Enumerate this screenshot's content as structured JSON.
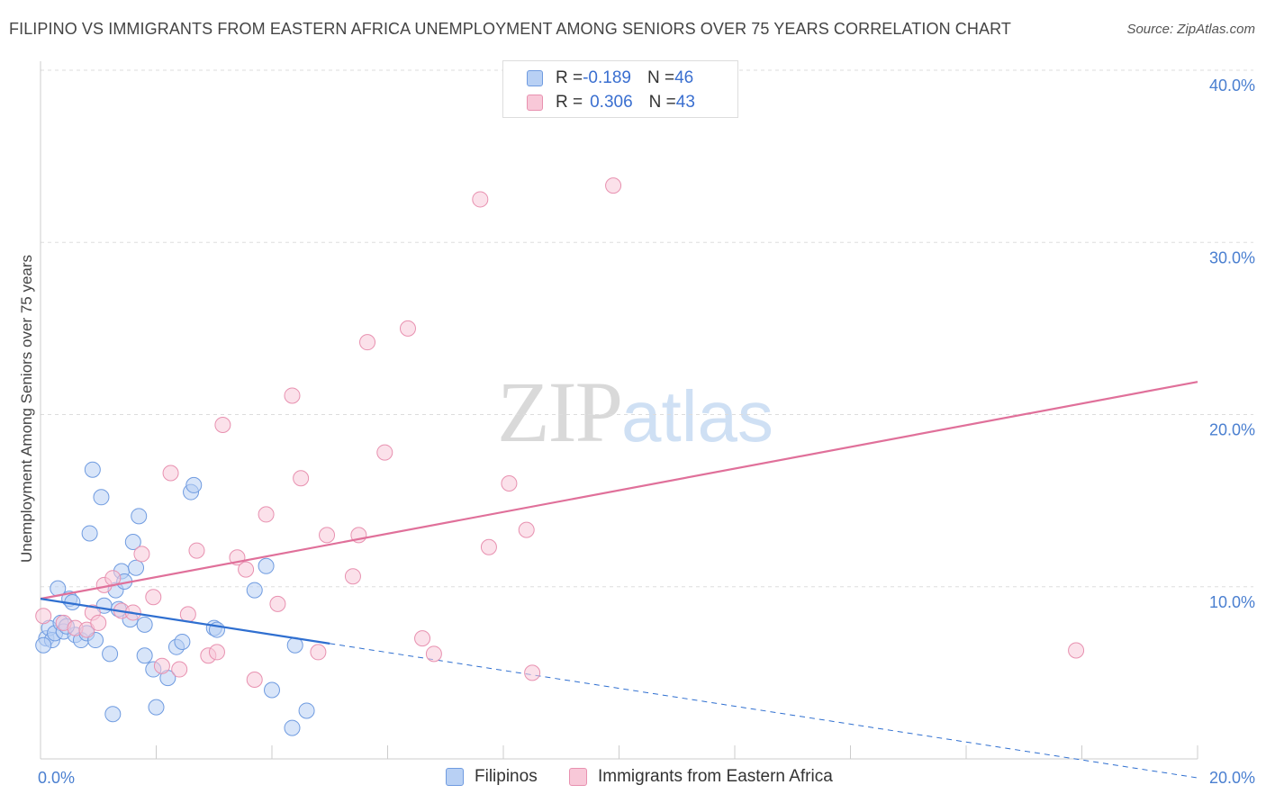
{
  "header": {
    "title": "FILIPINO VS IMMIGRANTS FROM EASTERN AFRICA UNEMPLOYMENT AMONG SENIORS OVER 75 YEARS CORRELATION CHART",
    "source": "Source: ZipAtlas.com"
  },
  "watermark": {
    "zip": "ZIP",
    "atlas": "atlas"
  },
  "legend": {
    "rows": [
      {
        "r_label": "R = ",
        "r_value": "-0.189",
        "n_label": "N = ",
        "n_value": "46"
      },
      {
        "r_label": "R = ",
        "r_value": "0.306",
        "n_label": "N = ",
        "n_value": "43"
      }
    ]
  },
  "bottom_legend": {
    "items": [
      {
        "label": "Filipinos"
      },
      {
        "label": "Immigrants from Eastern Africa"
      }
    ]
  },
  "colors": {
    "blue_fill": "#b8d0f4",
    "blue_stroke": "#6f9be0",
    "blue_line": "#2f6fd0",
    "pink_fill": "#f8c8d8",
    "pink_stroke": "#e891b0",
    "pink_line": "#e0709a",
    "tick": "#4a7fd0",
    "grid": "#dddddd"
  },
  "chart_data": {
    "type": "scatter",
    "title": "FILIPINO VS IMMIGRANTS FROM EASTERN AFRICA UNEMPLOYMENT AMONG SENIORS OVER 75 YEARS CORRELATION CHART",
    "xlabel": "",
    "ylabel": "Unemployment Among Seniors over 75 years",
    "xlim": [
      0,
      20
    ],
    "ylim": [
      0,
      40
    ],
    "x_ticks": [
      {
        "value": 0,
        "label": "0.0%"
      },
      {
        "value": 20,
        "label": "20.0%"
      }
    ],
    "y_ticks": [
      {
        "value": 10,
        "label": "10.0%"
      },
      {
        "value": 20,
        "label": "20.0%"
      },
      {
        "value": 30,
        "label": "30.0%"
      },
      {
        "value": 40,
        "label": "40.0%"
      }
    ],
    "series": [
      {
        "name": "Filipinos",
        "color": "#6f9be0",
        "points": [
          [
            0.1,
            7.0
          ],
          [
            0.15,
            7.6
          ],
          [
            0.2,
            6.9
          ],
          [
            0.25,
            7.3
          ],
          [
            0.3,
            9.9
          ],
          [
            0.35,
            7.9
          ],
          [
            0.4,
            7.4
          ],
          [
            0.5,
            9.3
          ],
          [
            0.55,
            9.1
          ],
          [
            0.6,
            7.2
          ],
          [
            0.7,
            6.9
          ],
          [
            0.8,
            7.3
          ],
          [
            0.85,
            13.1
          ],
          [
            0.9,
            16.8
          ],
          [
            0.95,
            6.9
          ],
          [
            1.05,
            15.2
          ],
          [
            1.1,
            8.9
          ],
          [
            1.2,
            6.1
          ],
          [
            1.25,
            2.6
          ],
          [
            1.3,
            9.8
          ],
          [
            1.35,
            8.7
          ],
          [
            1.4,
            10.9
          ],
          [
            1.45,
            10.3
          ],
          [
            1.55,
            8.1
          ],
          [
            1.6,
            12.6
          ],
          [
            1.65,
            11.1
          ],
          [
            1.7,
            14.1
          ],
          [
            1.8,
            7.8
          ],
          [
            1.8,
            6.0
          ],
          [
            1.95,
            5.2
          ],
          [
            2.0,
            3.0
          ],
          [
            2.2,
            4.7
          ],
          [
            2.35,
            6.5
          ],
          [
            2.45,
            6.8
          ],
          [
            2.6,
            15.5
          ],
          [
            2.65,
            15.9
          ],
          [
            3.0,
            7.6
          ],
          [
            3.05,
            7.5
          ],
          [
            3.7,
            9.8
          ],
          [
            3.9,
            11.2
          ],
          [
            4.0,
            4.0
          ],
          [
            4.35,
            1.8
          ],
          [
            4.4,
            6.6
          ],
          [
            4.6,
            2.8
          ],
          [
            0.05,
            6.6
          ],
          [
            0.45,
            7.7
          ]
        ]
      },
      {
        "name": "Immigrants from Eastern Africa",
        "color": "#e891b0",
        "points": [
          [
            0.05,
            8.3
          ],
          [
            0.4,
            7.9
          ],
          [
            0.6,
            7.6
          ],
          [
            0.8,
            7.5
          ],
          [
            0.9,
            8.5
          ],
          [
            1.0,
            7.9
          ],
          [
            1.1,
            10.1
          ],
          [
            1.25,
            10.5
          ],
          [
            1.4,
            8.6
          ],
          [
            1.6,
            8.5
          ],
          [
            1.75,
            11.9
          ],
          [
            1.95,
            9.4
          ],
          [
            2.1,
            5.4
          ],
          [
            2.25,
            16.6
          ],
          [
            2.4,
            5.2
          ],
          [
            2.55,
            8.4
          ],
          [
            2.7,
            12.1
          ],
          [
            2.9,
            6.0
          ],
          [
            3.05,
            6.2
          ],
          [
            3.15,
            19.4
          ],
          [
            3.4,
            11.7
          ],
          [
            3.55,
            11.0
          ],
          [
            3.7,
            4.6
          ],
          [
            3.9,
            14.2
          ],
          [
            4.1,
            9.0
          ],
          [
            4.35,
            21.1
          ],
          [
            4.5,
            16.3
          ],
          [
            4.8,
            6.2
          ],
          [
            4.95,
            13.0
          ],
          [
            5.4,
            10.6
          ],
          [
            5.5,
            13.0
          ],
          [
            5.65,
            24.2
          ],
          [
            5.95,
            17.8
          ],
          [
            6.35,
            25.0
          ],
          [
            6.6,
            7.0
          ],
          [
            6.8,
            6.1
          ],
          [
            7.6,
            32.5
          ],
          [
            7.75,
            12.3
          ],
          [
            8.1,
            16.0
          ],
          [
            8.4,
            13.3
          ],
          [
            8.5,
            5.0
          ],
          [
            9.9,
            33.3
          ],
          [
            17.9,
            6.3
          ]
        ]
      }
    ],
    "trend_lines": [
      {
        "series": "Filipinos",
        "solid": [
          [
            0,
            9.3
          ],
          [
            5.0,
            6.7
          ]
        ],
        "dashed": [
          [
            5.0,
            6.7
          ],
          [
            20,
            -1.1
          ]
        ]
      },
      {
        "series": "Immigrants from Eastern Africa",
        "solid": [
          [
            0,
            9.3
          ],
          [
            20,
            21.9
          ]
        ]
      }
    ]
  }
}
